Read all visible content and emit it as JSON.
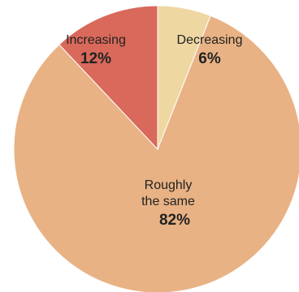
{
  "chart_data": {
    "type": "pie",
    "title": "",
    "slices": [
      {
        "label": "Decreasing",
        "label_lines": [
          "Decreasing"
        ],
        "value": 6,
        "value_label": "6%",
        "color": "#efd7a2"
      },
      {
        "label": "Roughly the same",
        "label_lines": [
          "Roughly",
          "the same"
        ],
        "value": 82,
        "value_label": "82%",
        "color": "#e8b284"
      },
      {
        "label": "Increasing",
        "label_lines": [
          "Increasing"
        ],
        "value": 12,
        "value_label": "12%",
        "color": "#d9695b"
      }
    ]
  }
}
